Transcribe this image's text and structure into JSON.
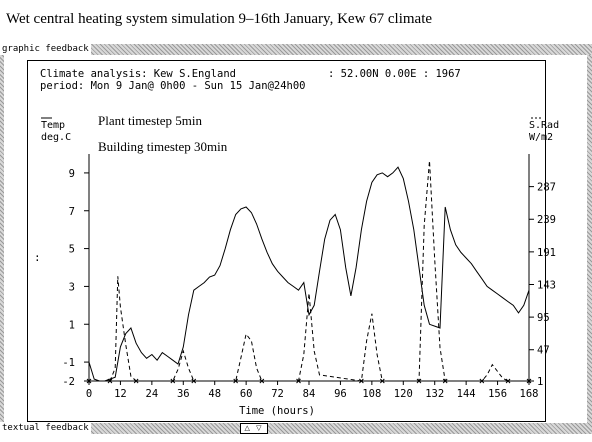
{
  "window": {
    "title": "Wet central heating system simulation 9–16th January, Kew 67 climate"
  },
  "graphic_feedback": {
    "label": "graphic feedback",
    "header_line1": "Climate analysis: Kew S.England",
    "header_coords": ": 52.00N  0.00E : 1967",
    "header_line2": "period: Mon  9 Jan@ 0h00 - Sun 15 Jan@24h00",
    "annotation1": "Plant timestep 5min",
    "annotation2": "Building timestep 30min",
    "left_axis_label1": "Temp",
    "left_axis_label2": "deg.C",
    "right_axis_label1": "S.Rad",
    "right_axis_label2": "W/m2",
    "left_marker": ":",
    "x_axis_label": "Time (hours)"
  },
  "textual_feedback": {
    "label": "textual feedback",
    "scroll_buttons": "△ ▽"
  },
  "colors": {
    "line": "#000000",
    "background": "#ffffff",
    "hatch": "#9a9a9a"
  },
  "chart_data": {
    "type": "line",
    "x_label": "Time (hours)",
    "x_range": [
      0,
      168
    ],
    "x_ticks": [
      0,
      12,
      24,
      36,
      48,
      60,
      72,
      84,
      96,
      108,
      120,
      132,
      144,
      156,
      168
    ],
    "y_left": {
      "label": "Temp deg.C",
      "range": [
        -2,
        10
      ],
      "ticks": [
        9,
        7,
        5,
        3,
        1,
        -1,
        -2
      ]
    },
    "y_right": {
      "label": "S.Rad W/m2",
      "range": [
        1,
        335
      ],
      "ticks": [
        287,
        239,
        191,
        143,
        95,
        47,
        1
      ]
    },
    "series": [
      {
        "name": "Temp",
        "style": "solid",
        "axis": "left",
        "x": [
          0,
          2,
          4,
          6,
          8,
          10,
          12,
          14,
          16,
          18,
          20,
          22,
          24,
          26,
          28,
          30,
          32,
          34,
          36,
          38,
          40,
          42,
          44,
          46,
          48,
          50,
          52,
          54,
          56,
          58,
          60,
          62,
          64,
          66,
          68,
          70,
          72,
          74,
          76,
          78,
          80,
          82,
          84,
          86,
          88,
          90,
          92,
          94,
          96,
          98,
          100,
          102,
          104,
          106,
          108,
          110,
          112,
          114,
          116,
          118,
          120,
          122,
          124,
          126,
          128,
          130,
          132,
          134,
          136,
          138,
          140,
          142,
          144,
          146,
          148,
          150,
          152,
          154,
          156,
          158,
          160,
          162,
          164,
          166,
          168
        ],
        "y": [
          -1.0,
          -1.9,
          -2.0,
          -2.0,
          -1.9,
          -1.8,
          -0.2,
          0.5,
          0.8,
          0.0,
          -0.5,
          -0.8,
          -0.6,
          -0.9,
          -0.5,
          -0.7,
          -0.9,
          -1.1,
          -0.2,
          1.5,
          2.8,
          3.0,
          3.2,
          3.5,
          3.6,
          4.1,
          5.0,
          6.0,
          6.8,
          7.1,
          7.2,
          6.9,
          6.3,
          5.5,
          4.8,
          4.2,
          3.8,
          3.5,
          3.2,
          3.0,
          2.8,
          3.2,
          1.5,
          2.0,
          3.8,
          5.5,
          6.5,
          6.8,
          6.0,
          4.0,
          2.5,
          4.0,
          6.0,
          7.5,
          8.5,
          8.9,
          9.0,
          8.8,
          9.0,
          9.3,
          8.7,
          7.5,
          6.0,
          4.0,
          2.0,
          1.0,
          0.9,
          0.8,
          7.2,
          6.0,
          5.2,
          4.8,
          4.5,
          4.2,
          3.8,
          3.4,
          3.0,
          2.8,
          2.6,
          2.4,
          2.2,
          2.0,
          1.6,
          2.0,
          2.8
        ]
      },
      {
        "name": "S.Rad",
        "style": "dashed",
        "axis": "right",
        "x": [
          0,
          8,
          10,
          11,
          12,
          14,
          16,
          18,
          32,
          34,
          36,
          38,
          40,
          56,
          58,
          60,
          62,
          64,
          66,
          80,
          82,
          84,
          86,
          88,
          104,
          106,
          108,
          110,
          112,
          126,
          128,
          130,
          132,
          134,
          136,
          150,
          152,
          154,
          156,
          158,
          160,
          168
        ],
        "y": [
          1,
          1,
          20,
          155,
          110,
          55,
          8,
          1,
          1,
          18,
          45,
          20,
          1,
          1,
          35,
          70,
          60,
          20,
          1,
          1,
          40,
          130,
          45,
          10,
          1,
          60,
          100,
          40,
          1,
          1,
          230,
          325,
          180,
          50,
          1,
          1,
          10,
          25,
          15,
          5,
          1,
          1
        ]
      }
    ]
  }
}
